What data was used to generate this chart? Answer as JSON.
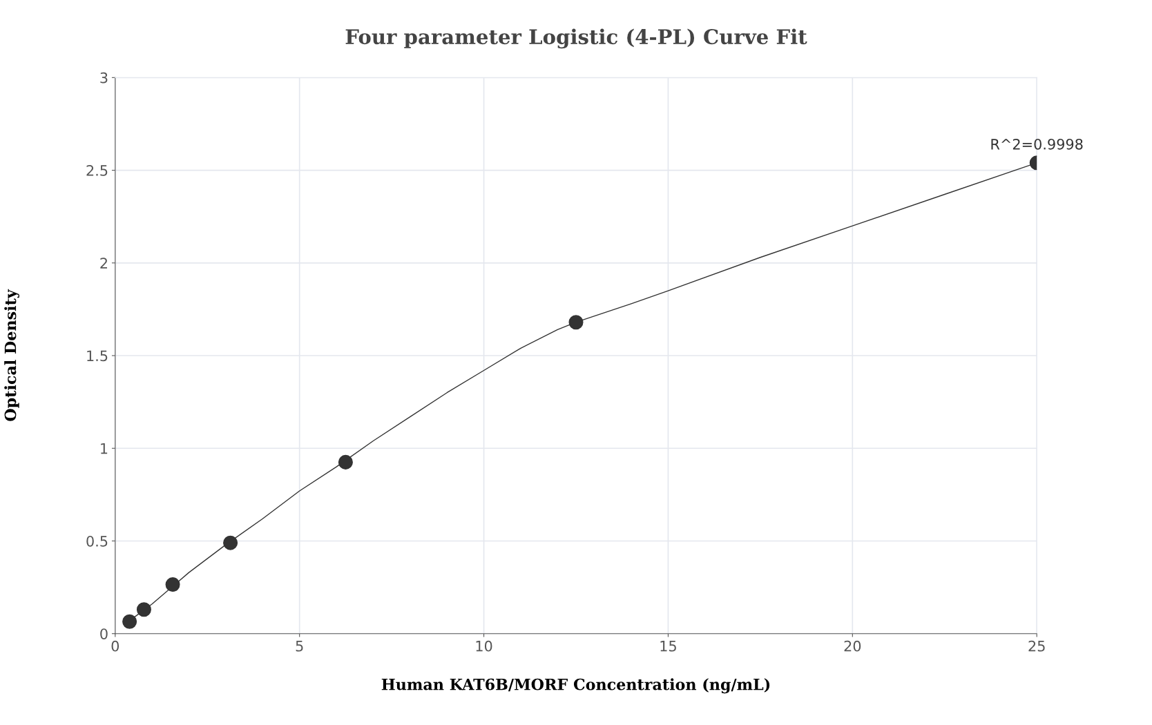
{
  "chart_data": {
    "type": "scatter",
    "title": "Four parameter Logistic (4-PL) Curve Fit",
    "xlabel": "Human KAT6B/MORF Concentration (ng/mL)",
    "ylabel": "Optical Density",
    "series": [
      {
        "color": "#333333",
        "x": [
          0.39,
          0.78,
          1.56,
          3.125,
          6.25,
          12.5,
          25
        ],
        "values": [
          0.065,
          0.13,
          0.265,
          0.49,
          0.925,
          1.68,
          2.54
        ]
      },
      {
        "type": "line",
        "color": "#333333",
        "line_style": "solid",
        "marker": "none",
        "x": [
          0.39,
          1,
          2,
          3,
          4,
          5,
          6,
          7,
          8,
          9,
          10,
          11,
          12,
          12.5,
          14,
          15,
          17.5,
          20,
          22.5,
          25
        ],
        "values": [
          0.07,
          0.16,
          0.33,
          0.48,
          0.62,
          0.77,
          0.9,
          1.04,
          1.17,
          1.3,
          1.42,
          1.54,
          1.64,
          1.68,
          1.78,
          1.85,
          2.03,
          2.2,
          2.37,
          2.54
        ]
      }
    ],
    "annotations": [
      {
        "text": "R^2=0.9998",
        "x": 25,
        "y": 2.54
      }
    ],
    "xlim": [
      0,
      25
    ],
    "xticks": [
      0,
      5,
      10,
      15,
      20,
      25
    ],
    "ylim": [
      0,
      3
    ],
    "yticks": [
      0,
      0.5,
      1,
      1.5,
      2,
      2.5,
      3
    ],
    "marker": "circle",
    "grid": true
  }
}
